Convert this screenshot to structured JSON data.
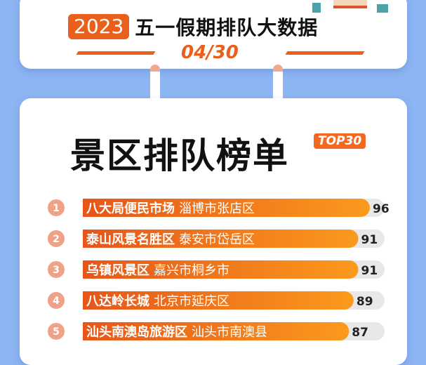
{
  "header": {
    "year": "2023",
    "title": "五一假期排队大数据",
    "date": "04/30"
  },
  "heading": "景区排队榜单",
  "badge": "TOP30",
  "colors": {
    "background": "#8db4f3",
    "accent": "#e8601c",
    "bar_start": "#e5561a",
    "bar_end": "#fb9a1d",
    "track": "#e8e8e8"
  },
  "chart_data": {
    "type": "bar",
    "orientation": "horizontal",
    "categories": [
      "八大局便民市场",
      "泰山风景名胜区",
      "乌镇风景区",
      "八达岭长城",
      "汕头南澳岛旅游区"
    ],
    "locations": [
      "淄博市张店区",
      "泰安市岱岳区",
      "嘉兴市桐乡市",
      "北京市延庆区",
      "汕头市南澳县"
    ],
    "ranks": [
      "1",
      "2",
      "3",
      "4",
      "5"
    ],
    "values": [
      96,
      91,
      91,
      89,
      87
    ]
  }
}
